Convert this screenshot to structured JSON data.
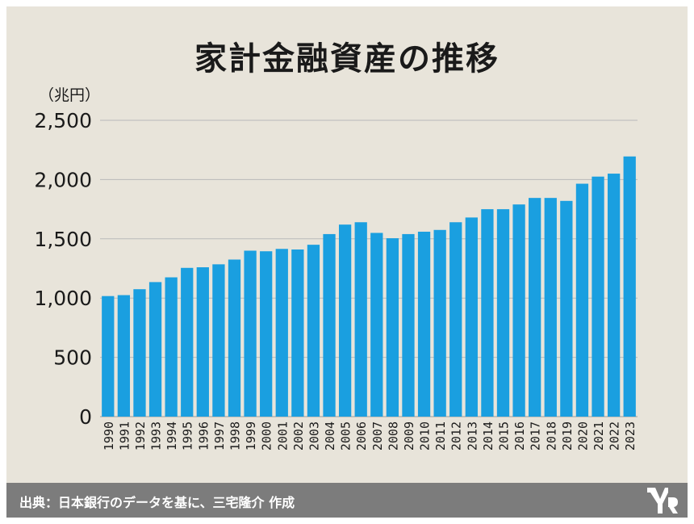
{
  "chart_data": {
    "type": "bar",
    "title": "家計金融資産の推移",
    "unit_label": "（兆円）",
    "categories": [
      "1990",
      "1991",
      "1992",
      "1993",
      "1994",
      "1995",
      "1996",
      "1997",
      "1998",
      "1999",
      "2000",
      "2001",
      "2002",
      "2003",
      "2004",
      "2005",
      "2006",
      "2007",
      "2008",
      "2009",
      "2010",
      "2011",
      "2012",
      "2013",
      "2014",
      "2015",
      "2016",
      "2017",
      "2018",
      "2019",
      "2020",
      "2021",
      "2022",
      "2023"
    ],
    "values": [
      1017,
      1025,
      1075,
      1135,
      1175,
      1255,
      1260,
      1285,
      1325,
      1400,
      1395,
      1415,
      1410,
      1450,
      1540,
      1620,
      1640,
      1550,
      1505,
      1540,
      1560,
      1575,
      1640,
      1680,
      1750,
      1750,
      1790,
      1845,
      1845,
      1820,
      1965,
      2025,
      2050,
      2195
    ],
    "yticks": [
      "0",
      "500",
      "1,000",
      "1,500",
      "2,000",
      "2,500"
    ],
    "ylim": [
      0,
      2500
    ],
    "grid": true,
    "bar_color": "#1a9fe0"
  },
  "footer": {
    "source": "出典：日本銀行のデータを基に、三宅隆介 作成",
    "logo": "brand-logo"
  }
}
